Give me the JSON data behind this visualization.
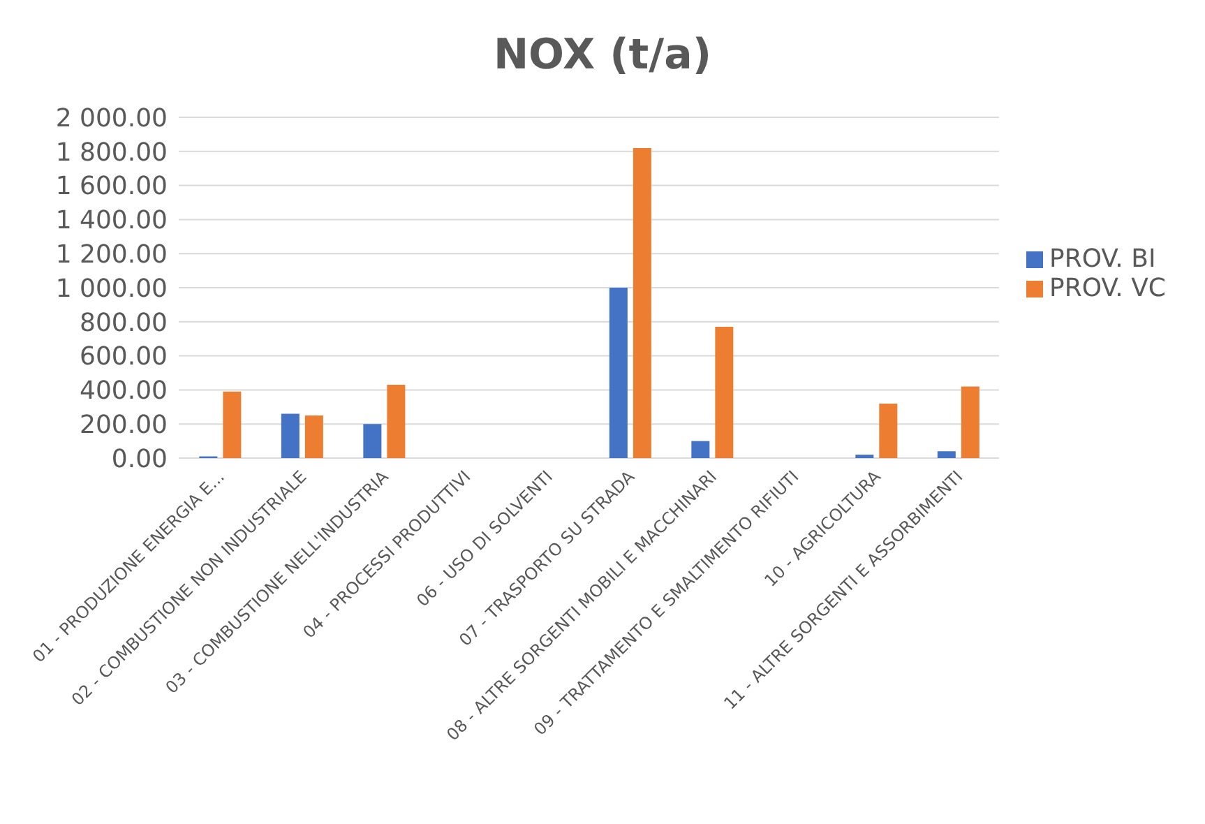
{
  "chart_data": {
    "type": "bar",
    "title": "NOX (t/a)",
    "categories": [
      "01 - PRODUZIONE ENERGIA E...",
      "02 - COMBUSTIONE NON INDUSTRIALE",
      "03 - COMBUSTIONE NELL'INDUSTRIA",
      "04 - PROCESSI PRODUTTIVI",
      "06 - USO DI SOLVENTI",
      "07 - TRASPORTO SU STRADA",
      "08 - ALTRE SORGENTI MOBILI E MACCHINARI",
      "09 - TRATTAMENTO E SMALTIMENTO RIFIUTI",
      "10 - AGRICOLTURA",
      "11 - ALTRE SORGENTI E ASSORBIMENTI"
    ],
    "series": [
      {
        "name": "PROV. BI",
        "color": "#4472c4",
        "values": [
          10,
          260,
          200,
          0,
          0,
          1000,
          100,
          0,
          20,
          40
        ]
      },
      {
        "name": "PROV. VC",
        "color": "#ed7d31",
        "values": [
          390,
          250,
          430,
          0,
          0,
          1820,
          770,
          0,
          320,
          420
        ]
      }
    ],
    "ylim": [
      0,
      2000
    ],
    "yticks": [
      {
        "value": 0,
        "label": "0.00"
      },
      {
        "value": 200,
        "label": "200.00"
      },
      {
        "value": 400,
        "label": "400.00"
      },
      {
        "value": 600,
        "label": "600.00"
      },
      {
        "value": 800,
        "label": "800.00"
      },
      {
        "value": 1000,
        "label": "1 000.00"
      },
      {
        "value": 1200,
        "label": "1 200.00"
      },
      {
        "value": 1400,
        "label": "1 400.00"
      },
      {
        "value": 1600,
        "label": "1 600.00"
      },
      {
        "value": 1800,
        "label": "1 800.00"
      },
      {
        "value": 2000,
        "label": "2 000.00"
      }
    ],
    "grid": "y",
    "legend": "right"
  }
}
